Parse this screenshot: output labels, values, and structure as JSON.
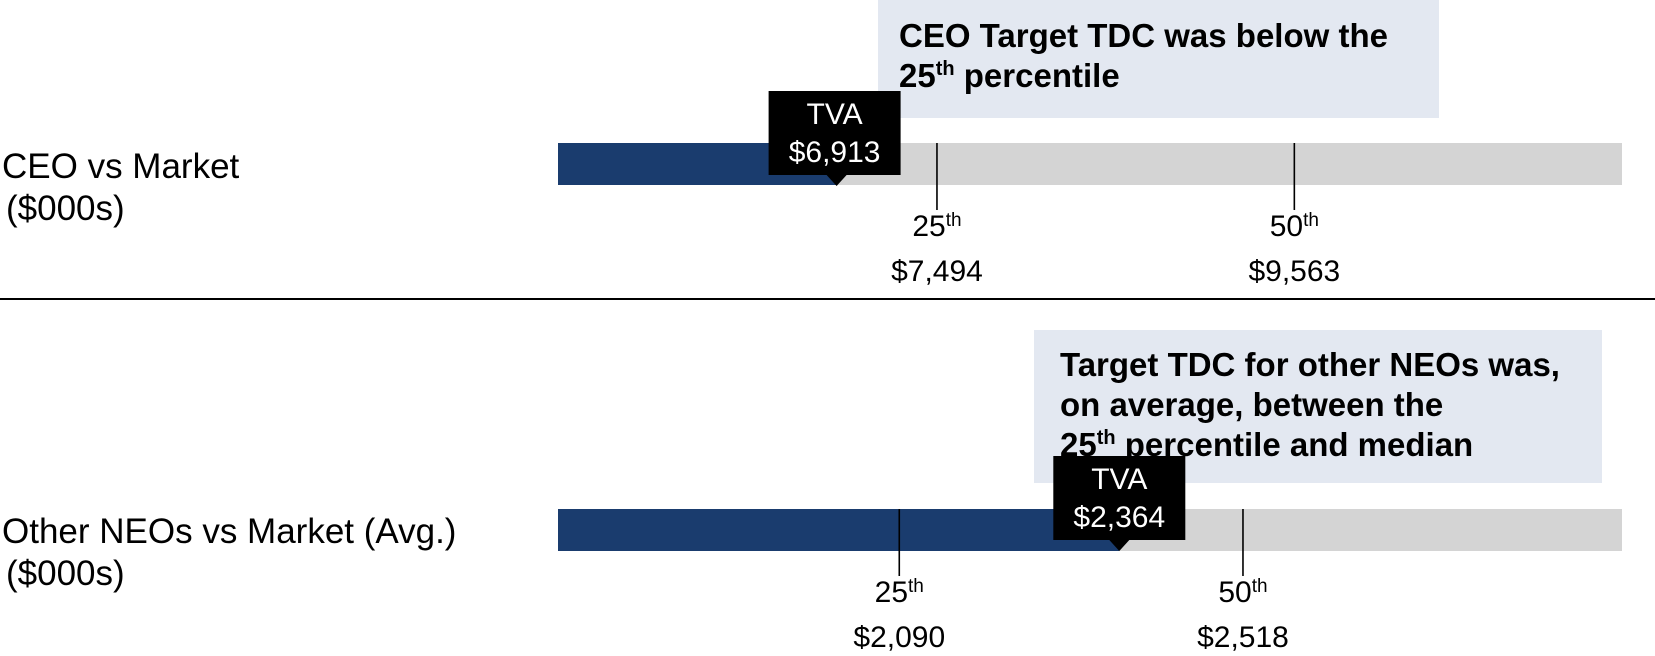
{
  "chart_data": [
    {
      "type": "bar",
      "row_label": "CEO vs Market",
      "row_label_unit": "($000s)",
      "callout": {
        "lines": [
          {
            "text": "CEO Target TDC was below the",
            "sup": ""
          },
          {
            "text": "25",
            "sup": "th",
            "after": " percentile"
          }
        ]
      },
      "axis_range": [
        5300,
        11460
      ],
      "value": 6913,
      "value_label": "TVA",
      "value_display": "$6,913",
      "percentiles": [
        {
          "num": "25",
          "sup": "th",
          "value": 7494,
          "display": "$7,494"
        },
        {
          "num": "50",
          "sup": "th",
          "value": 9563,
          "display": "$9,563"
        }
      ]
    },
    {
      "type": "bar",
      "row_label": "Other NEOs vs Market (Avg.)",
      "row_label_unit": "($000s)",
      "callout": {
        "lines": [
          {
            "text": "Target TDC for other NEOs was,",
            "sup": ""
          },
          {
            "text": "on average, between the",
            "sup": ""
          },
          {
            "text": "25",
            "sup": "th",
            "after": " percentile and median"
          }
        ]
      },
      "axis_range": [
        1665,
        2990
      ],
      "value": 2364,
      "value_label": "TVA",
      "value_display": "$2,364",
      "percentiles": [
        {
          "num": "25",
          "sup": "th",
          "value": 2090,
          "display": "$2,090"
        },
        {
          "num": "50",
          "sup": "th",
          "value": 2518,
          "display": "$2,518"
        }
      ]
    }
  ],
  "colors": {
    "value_bar": "#1a3c6e",
    "track": "#d4d4d4",
    "callout_bg": "#e3e8f1",
    "tva_box": "#000000"
  }
}
